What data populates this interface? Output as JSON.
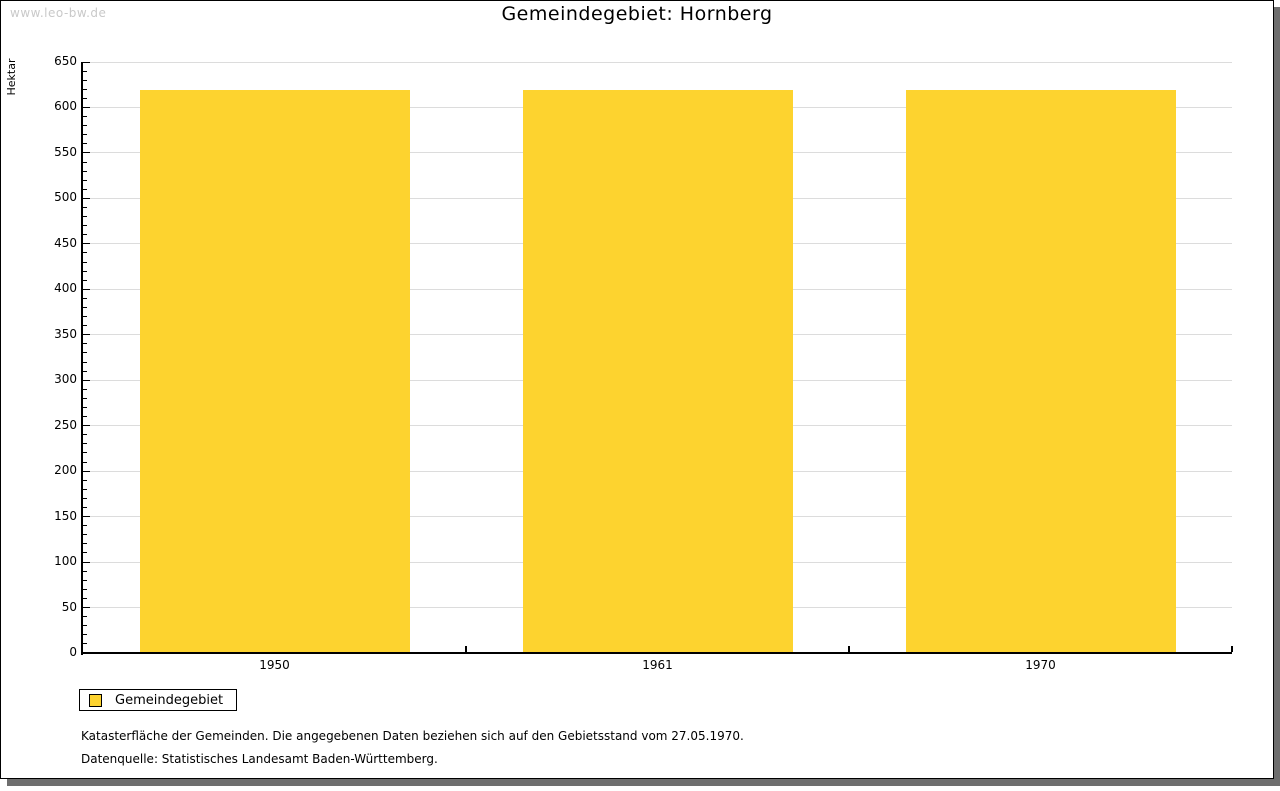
{
  "watermark": "www.leo-bw.de",
  "chart_data": {
    "type": "bar",
    "title": "Gemeindegebiet: Hornberg",
    "ylabel": "Hektar",
    "xlabel": "",
    "categories": [
      "1950",
      "1961",
      "1970"
    ],
    "series": [
      {
        "name": "Gemeindegebiet",
        "values": [
          619,
          619,
          619
        ]
      }
    ],
    "ylim": [
      0,
      650
    ],
    "ytick_major": 50,
    "ytick_minor": 10,
    "grid": true,
    "legend_position": "bottom-left"
  },
  "legend": {
    "label": "Gemeindegebiet"
  },
  "footnotes": [
    "Katasterfläche der Gemeinden. Die angegebenen Daten beziehen sich auf den Gebietsstand vom 27.05.1970.",
    "Datenquelle: Statistisches Landesamt Baden-Württemberg."
  ],
  "colors": {
    "bar": "#FDD32F",
    "grid": "#DCDCDC",
    "axis": "#000000",
    "watermark": "#C9C9C9",
    "shadow": "#6E6E6E"
  }
}
